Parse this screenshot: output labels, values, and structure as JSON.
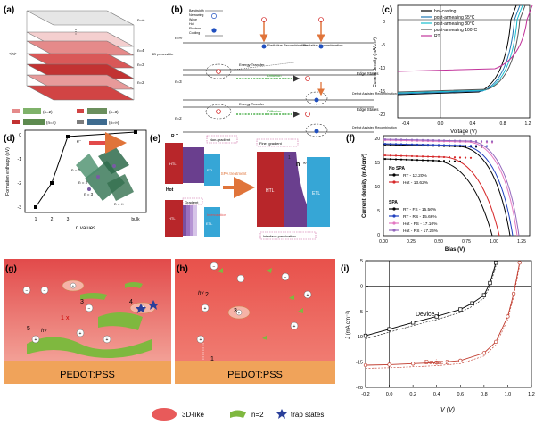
{
  "figure": {
    "panel_labels": {
      "a": "(a)",
      "b": "(b)",
      "c": "(c)",
      "d": "(d)",
      "e": "(e)",
      "f": "(f)",
      "g": "(g)",
      "h": "(h)",
      "i": "(i)"
    },
    "legend": {
      "three_d": "3D-like",
      "n2": "n=2",
      "trap": "trap states"
    }
  },
  "panel_a": {
    "layer_labels": [
      "n=∞",
      "n=4",
      "n=3",
      "n=2"
    ],
    "side_label": "3D perovskite",
    "axis_label": "<n>",
    "legend": [
      "(n=2)",
      "(n=3)",
      "(n=4)",
      "(n=∞)"
    ]
  },
  "panel_b": {
    "levels": [
      "n=∞",
      "n=3",
      "n=2"
    ],
    "top_labels": [
      "Bandwidth",
      "Narrowing",
      "Wave",
      "Hot",
      "Electron",
      "Cooling"
    ],
    "radiative": "Radiative Recombination",
    "energy_transfer": "Energy Transfer",
    "diffusion": "Diffusion",
    "edge_states": "Edge States",
    "defect": "Defect Assisted Recombination"
  },
  "panel_c": {
    "xlabel": "Voltage (V)",
    "ylabel": "Current density (mA/cm²)",
    "xticks": [
      "-0.4",
      "0.0",
      "0.4",
      "0.8",
      "1.2"
    ],
    "yticks": [
      "0",
      "-5",
      "-10",
      "-15",
      "-20"
    ],
    "legend": [
      {
        "label": "hot-casting",
        "color": "#000000"
      },
      {
        "label": "post-annealing 65°C",
        "color": "#1f77b4"
      },
      {
        "label": "post-annealing 80°C",
        "color": "#17becf"
      },
      {
        "label": "post-annealing 100°C",
        "color": "#555555"
      },
      {
        "label": "RT",
        "color": "#c2349b"
      }
    ]
  },
  "panel_d": {
    "xlabel": "n values",
    "ylabel": "Formation enthalpy (eV)",
    "xticks": [
      "1",
      "2",
      "3",
      "bulk"
    ],
    "yticks": [
      "0",
      "-1",
      "-2",
      "-3"
    ],
    "n_labels": [
      "n = 1",
      "n = 2",
      "n = 3",
      "n = ∞"
    ],
    "electron": "e⁻"
  },
  "panel_e": {
    "rt": "R T",
    "hot": "Hot",
    "non_gradient": "Non-gradient",
    "gradient": "Gradient",
    "intercalation": "Intercalation",
    "htl": "HTL",
    "etl": "ETL",
    "treatment": "SPA treatment",
    "finer": "Finer gradient",
    "n_label": "n",
    "one": "1",
    "inf": "∞",
    "passivation": "Interface passivation"
  },
  "panel_f": {
    "xlabel": "Bias (V)",
    "ylabel": "Current density (mA/cm²)",
    "xticks": [
      "0.00",
      "0.25",
      "0.50",
      "0.75",
      "1.00",
      "1.25"
    ],
    "yticks": [
      "0",
      "5",
      "10",
      "15",
      "20"
    ],
    "no_spa": "No SPA",
    "spa": "SPA",
    "legend": [
      {
        "label": "RT - 12.20%",
        "color": "#000000"
      },
      {
        "label": "Hot - 13.62%",
        "color": "#d62728"
      },
      {
        "label": "RT - FS - 15.56%",
        "color": "#000000"
      },
      {
        "label": "RT - RS - 15.66%",
        "color": "#1f3fbf"
      },
      {
        "label": "Hot - FS - 17.10%",
        "color": "#e377c2"
      },
      {
        "label": "Hot - RS - 17.26%",
        "color": "#9467bd"
      }
    ]
  },
  "panel_g": {
    "substrate": "PEDOT:PSS",
    "hv": "hv",
    "nums": [
      "3",
      "4",
      "5",
      "1",
      "2"
    ],
    "x": "x"
  },
  "panel_h": {
    "substrate": "PEDOT:PSS",
    "hv": "hv",
    "nums": [
      "2",
      "3",
      "1"
    ]
  },
  "panel_i": {
    "xlabel": "V (V)",
    "ylabel": "J (mA cm⁻²)",
    "xticks": [
      "-0.2",
      "0.0",
      "0.2",
      "0.4",
      "0.6",
      "0.8",
      "1.0",
      "1.2"
    ],
    "yticks": [
      "5",
      "0",
      "-5",
      "-10",
      "-15",
      "-20"
    ],
    "device1": "Device 1",
    "device2": "Device 2",
    "chart_data": [
      {
        "name": "Device 1",
        "x": [
          -0.2,
          0.0,
          0.2,
          0.4,
          0.6,
          0.7,
          0.8,
          0.85,
          0.9
        ],
        "y": [
          -9.8,
          -8.5,
          -7.2,
          -6.0,
          -4.6,
          -3.4,
          -1.8,
          0.6,
          4.6
        ]
      },
      {
        "name": "Device 2",
        "x": [
          -0.2,
          0.0,
          0.2,
          0.4,
          0.6,
          0.8,
          0.9,
          1.0,
          1.05,
          1.1
        ],
        "y": [
          -15.6,
          -15.5,
          -15.3,
          -15.1,
          -14.7,
          -13.2,
          -11.0,
          -6.0,
          -1.5,
          4.6
        ]
      }
    ]
  }
}
